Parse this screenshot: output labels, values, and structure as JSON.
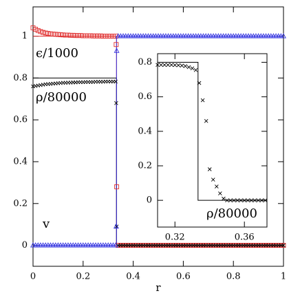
{
  "chart_data": [
    {
      "type": "scatter",
      "xlabel": "r",
      "xlim": [
        0,
        1
      ],
      "ylim": [
        -0.1,
        1.14
      ],
      "xticks": [
        0,
        0.2,
        0.4,
        0.6,
        0.8,
        1
      ],
      "yticks": [
        0,
        0.2,
        0.4,
        0.6,
        0.8,
        1
      ],
      "x": [
        0,
        0.01,
        0.02,
        0.03,
        0.04,
        0.05,
        0.06,
        0.07,
        0.08,
        0.09,
        0.1,
        0.11,
        0.12,
        0.13,
        0.14,
        0.15,
        0.16,
        0.17,
        0.18,
        0.19,
        0.2,
        0.21,
        0.22,
        0.23,
        0.24,
        0.25,
        0.26,
        0.27,
        0.28,
        0.29,
        0.3,
        0.31,
        0.32,
        0.33,
        0.332,
        0.334,
        0.34,
        0.35,
        0.36,
        0.37,
        0.38,
        0.39,
        0.4,
        0.41,
        0.42,
        0.43,
        0.44,
        0.45,
        0.46,
        0.47,
        0.48,
        0.49,
        0.5,
        0.51,
        0.52,
        0.53,
        0.54,
        0.55,
        0.56,
        0.57,
        0.58,
        0.59,
        0.6,
        0.61,
        0.62,
        0.63,
        0.64,
        0.65,
        0.66,
        0.67,
        0.68,
        0.69,
        0.7,
        0.71,
        0.72,
        0.73,
        0.74,
        0.75,
        0.76,
        0.77,
        0.78,
        0.79,
        0.8,
        0.81,
        0.82,
        0.83,
        0.84,
        0.85,
        0.86,
        0.87,
        0.88,
        0.89,
        0.9,
        0.91,
        0.92,
        0.93,
        0.94,
        0.95,
        0.96,
        0.97,
        0.98,
        0.99,
        1
      ],
      "series": [
        {
          "color": "#e03030",
          "marker": "line",
          "x": [
            0,
            0.3333,
            0.3333,
            1
          ],
          "values": [
            1,
            1,
            0,
            0
          ]
        },
        {
          "color": "#000000",
          "marker": "line",
          "x": [
            0,
            0.3333,
            0.3333,
            1
          ],
          "values": [
            0.8,
            0.8,
            0,
            0
          ]
        },
        {
          "color": "#3030e0",
          "marker": "line",
          "x": [
            0,
            0.3333,
            0.3333,
            1
          ],
          "values": [
            0,
            0,
            1,
            1
          ]
        },
        {
          "color": "#e03030",
          "marker": "square",
          "values": [
            1.04,
            1.033,
            1.027,
            1.022,
            1.018,
            1.015,
            1.013,
            1.011,
            1.01,
            1.009,
            1.008,
            1.007,
            1.006,
            1.005,
            1.005,
            1.004,
            1.004,
            1.003,
            1.003,
            1.003,
            1.002,
            1.002,
            1.002,
            1.002,
            1.001,
            1.001,
            1.001,
            1.001,
            1,
            1,
            1,
            1,
            1,
            1,
            0.96,
            0.28,
            0,
            0,
            0,
            0,
            0,
            0,
            0,
            0,
            0,
            0,
            0,
            0,
            0,
            0,
            0,
            0,
            0,
            0,
            0,
            0,
            0,
            0,
            0,
            0,
            0,
            0,
            0,
            0,
            0,
            0,
            0,
            0,
            0,
            0,
            0,
            0,
            0,
            0,
            0,
            0,
            0,
            0,
            0,
            0,
            0,
            0,
            0,
            0,
            0,
            0,
            0,
            0,
            0,
            0,
            0,
            0,
            0,
            0,
            0,
            0,
            0,
            0,
            0,
            0,
            0,
            0,
            0
          ]
        },
        {
          "color": "#000000",
          "marker": "cross",
          "values": [
            0.76,
            0.762,
            0.764,
            0.766,
            0.768,
            0.77,
            0.771,
            0.772,
            0.773,
            0.774,
            0.775,
            0.776,
            0.777,
            0.777,
            0.778,
            0.778,
            0.779,
            0.779,
            0.78,
            0.78,
            0.78,
            0.781,
            0.781,
            0.781,
            0.781,
            0.782,
            0.782,
            0.782,
            0.782,
            0.783,
            0.783,
            0.783,
            0.783,
            0.783,
            0.68,
            0.09,
            0,
            0,
            0,
            0,
            0,
            0,
            0,
            0,
            0,
            0,
            0,
            0,
            0,
            0,
            0,
            0,
            0,
            0,
            0,
            0,
            0,
            0,
            0,
            0,
            0,
            0,
            0,
            0,
            0,
            0,
            0,
            0,
            0,
            0,
            0,
            0,
            0,
            0,
            0,
            0,
            0,
            0,
            0,
            0,
            0,
            0,
            0,
            0,
            0,
            0,
            0,
            0,
            0,
            0,
            0,
            0,
            0,
            0,
            0,
            0,
            0,
            0,
            0,
            0,
            0,
            0,
            0
          ]
        },
        {
          "color": "#3030e0",
          "marker": "triangle",
          "values": [
            0,
            0,
            0,
            0,
            0,
            0,
            0,
            0,
            0,
            0,
            0,
            0,
            0,
            0,
            0,
            0,
            0,
            0,
            0,
            0,
            0,
            0,
            0,
            0,
            0,
            0,
            0,
            0,
            0,
            0,
            0,
            0,
            0,
            0,
            0.09,
            0.93,
            1,
            1,
            1,
            1,
            1,
            1,
            1,
            1,
            1,
            1,
            1,
            1,
            1,
            1,
            1,
            1,
            1,
            1,
            1,
            1,
            1,
            1,
            1,
            1,
            1,
            1,
            1,
            1,
            1,
            1,
            1,
            1,
            1,
            1,
            1,
            1,
            1,
            1,
            1,
            1,
            1,
            1,
            1,
            1,
            1,
            1,
            1,
            1,
            1,
            1,
            1,
            1,
            1,
            1,
            1,
            1,
            1,
            1,
            1,
            1,
            1,
            1,
            1,
            1,
            1,
            1,
            1
          ]
        }
      ],
      "annotations": [
        {
          "text": "ϵ/1000",
          "color": "#e03030"
        },
        {
          "text": "ρ/80000",
          "color": "#000000"
        },
        {
          "text": "v",
          "color": "#3030e0"
        }
      ]
    },
    {
      "type": "scatter",
      "xlim": [
        0.31,
        0.373
      ],
      "ylim": [
        -0.155,
        0.85
      ],
      "xticks": [
        0.32,
        0.36
      ],
      "yticks": [
        0,
        0.2,
        0.4,
        0.6,
        0.8
      ],
      "x": [
        0.31,
        0.312,
        0.314,
        0.316,
        0.318,
        0.32,
        0.322,
        0.324,
        0.326,
        0.328,
        0.33,
        0.332,
        0.334,
        0.336,
        0.338,
        0.34,
        0.342,
        0.344,
        0.346,
        0.348,
        0.35,
        0.352,
        0.354,
        0.356,
        0.358,
        0.36,
        0.362,
        0.364,
        0.366,
        0.368,
        0.37,
        0.372
      ],
      "series": [
        {
          "color": "#000000",
          "marker": "line",
          "x": [
            0.31,
            0.3333,
            0.3333,
            0.373
          ],
          "values": [
            0.8,
            0.8,
            0,
            0
          ]
        },
        {
          "color": "#000000",
          "marker": "cross",
          "values": [
            0.785,
            0.785,
            0.785,
            0.785,
            0.785,
            0.784,
            0.783,
            0.781,
            0.778,
            0.772,
            0.765,
            0.755,
            0.68,
            0.58,
            0.46,
            0.18,
            0.12,
            0.08,
            0.04,
            0.01,
            0,
            0,
            0,
            0,
            0,
            0,
            0,
            0,
            0,
            0,
            0,
            0
          ]
        }
      ],
      "annotations": [
        {
          "text": "ρ/80000",
          "color": "#000000"
        }
      ]
    }
  ]
}
